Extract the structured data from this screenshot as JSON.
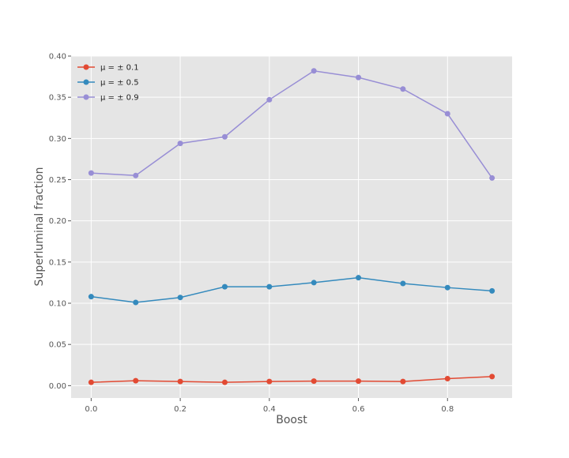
{
  "chart_data": {
    "type": "line",
    "title": "",
    "xlabel": "Boost",
    "ylabel": "Superluminal fraction",
    "x": [
      0.0,
      0.1,
      0.2,
      0.3,
      0.4,
      0.5,
      0.6,
      0.7,
      0.8,
      0.9
    ],
    "xlim": [
      -0.045,
      0.945
    ],
    "ylim": [
      -0.015,
      0.4
    ],
    "x_ticks": [
      "0.0",
      "0.2",
      "0.4",
      "0.6",
      "0.8"
    ],
    "x_tick_values": [
      0.0,
      0.2,
      0.4,
      0.6,
      0.8
    ],
    "y_ticks": [
      "0.00",
      "0.05",
      "0.10",
      "0.15",
      "0.20",
      "0.25",
      "0.30",
      "0.35",
      "0.40"
    ],
    "y_tick_values": [
      0.0,
      0.05,
      0.1,
      0.15,
      0.2,
      0.25,
      0.3,
      0.35,
      0.4
    ],
    "grid": true,
    "legend_position": "top-left",
    "background": "#e5e5e5",
    "series": [
      {
        "name": "μ = ± 0.1",
        "color": "#e24a33",
        "values": [
          0.004,
          0.006,
          0.005,
          0.004,
          0.005,
          0.0055,
          0.0055,
          0.005,
          0.0085,
          0.011
        ]
      },
      {
        "name": "μ = ± 0.5",
        "color": "#348abd",
        "values": [
          0.108,
          0.101,
          0.107,
          0.12,
          0.12,
          0.125,
          0.131,
          0.124,
          0.119,
          0.115
        ]
      },
      {
        "name": "μ = ± 0.9",
        "color": "#988ed5",
        "values": [
          0.258,
          0.255,
          0.294,
          0.302,
          0.347,
          0.382,
          0.374,
          0.36,
          0.33,
          0.252
        ]
      }
    ]
  }
}
